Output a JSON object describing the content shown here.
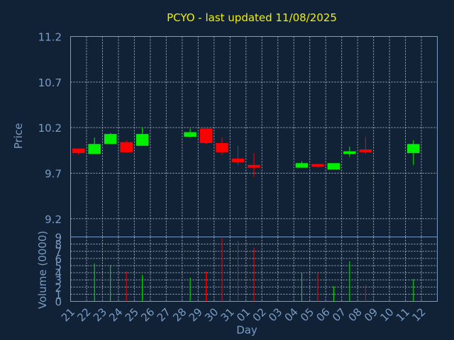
{
  "chart_data": {
    "type": "candlestick",
    "title": "PCYO - last updated 11/08/2025",
    "xlabel": "Day",
    "price_panel": {
      "ylabel": "Price",
      "ylim": [
        9.0,
        11.2
      ],
      "yticks": [
        "9.2",
        "9.7",
        "10.2",
        "10.7",
        "11.2"
      ],
      "ytick_values": [
        9.2,
        9.7,
        10.2,
        10.7,
        11.2
      ],
      "grid": true
    },
    "volume_panel": {
      "ylabel": "Volume (0000)",
      "ylim": [
        0,
        9
      ],
      "yticks": [
        "0",
        "1",
        "2",
        "3",
        "4",
        "5",
        "6",
        "7",
        "8",
        "9"
      ],
      "grid": true
    },
    "x_labels": [
      "21",
      "22",
      "23",
      "24",
      "25",
      "26",
      "27",
      "28",
      "29",
      "30",
      "31",
      "01",
      "02",
      "03",
      "04",
      "05",
      "06",
      "07",
      "08",
      "09",
      "10",
      "11",
      "12"
    ],
    "colors": {
      "up": "#00ee00",
      "down": "#ff0000"
    },
    "candles": [
      {
        "day": "21",
        "open": 9.97,
        "high": 9.97,
        "low": 9.9,
        "close": 9.92
      },
      {
        "day": "22",
        "open": 9.91,
        "high": 10.09,
        "low": 9.91,
        "close": 10.02
      },
      {
        "day": "23",
        "open": 10.02,
        "high": 10.14,
        "low": 10.02,
        "close": 10.13
      },
      {
        "day": "24",
        "open": 10.04,
        "high": 10.06,
        "low": 9.92,
        "close": 9.93
      },
      {
        "day": "25",
        "open": 10.0,
        "high": 10.2,
        "low": 10.0,
        "close": 10.13
      },
      {
        "day": "28",
        "open": 10.1,
        "high": 10.19,
        "low": 10.09,
        "close": 10.15
      },
      {
        "day": "29",
        "open": 10.19,
        "high": 10.19,
        "low": 10.02,
        "close": 10.03
      },
      {
        "day": "30",
        "open": 10.03,
        "high": 10.09,
        "low": 9.9,
        "close": 9.93
      },
      {
        "day": "31",
        "open": 9.86,
        "high": 10.0,
        "low": 9.79,
        "close": 9.82
      },
      {
        "day": "01",
        "open": 9.79,
        "high": 9.92,
        "low": 9.66,
        "close": 9.76
      },
      {
        "day": "04",
        "open": 9.76,
        "high": 9.83,
        "low": 9.76,
        "close": 9.81
      },
      {
        "day": "05",
        "open": 9.8,
        "high": 9.8,
        "low": 9.76,
        "close": 9.77
      },
      {
        "day": "06",
        "open": 9.74,
        "high": 9.81,
        "low": 9.74,
        "close": 9.81
      },
      {
        "day": "07",
        "open": 9.91,
        "high": 9.99,
        "low": 9.88,
        "close": 9.94
      },
      {
        "day": "08",
        "open": 9.96,
        "high": 10.1,
        "low": 9.91,
        "close": 9.93
      },
      {
        "day": "11",
        "open": 9.92,
        "high": 10.06,
        "low": 9.79,
        "close": 10.02
      }
    ],
    "volume": [
      {
        "day": "21",
        "value": 0,
        "dir": "down"
      },
      {
        "day": "22",
        "value": 5.3,
        "dir": "up"
      },
      {
        "day": "23",
        "value": 5.1,
        "dir": "up"
      },
      {
        "day": "24",
        "value": 4.2,
        "dir": "down"
      },
      {
        "day": "25",
        "value": 3.7,
        "dir": "up"
      },
      {
        "day": "28",
        "value": 3.3,
        "dir": "up"
      },
      {
        "day": "29",
        "value": 4.2,
        "dir": "down"
      },
      {
        "day": "30",
        "value": 8.8,
        "dir": "down"
      },
      {
        "day": "31",
        "value": 8.4,
        "dir": "down"
      },
      {
        "day": "01",
        "value": 7.5,
        "dir": "down"
      },
      {
        "day": "04",
        "value": 4.0,
        "dir": "up"
      },
      {
        "day": "05",
        "value": 3.9,
        "dir": "down"
      },
      {
        "day": "06",
        "value": 2.1,
        "dir": "up"
      },
      {
        "day": "07",
        "value": 5.6,
        "dir": "up"
      },
      {
        "day": "08",
        "value": 2.3,
        "dir": "down"
      },
      {
        "day": "11",
        "value": 3.1,
        "dir": "up"
      }
    ]
  }
}
